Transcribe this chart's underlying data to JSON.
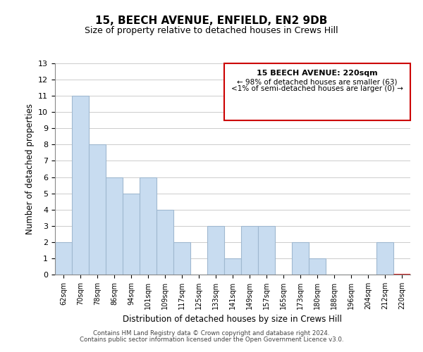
{
  "title": "15, BEECH AVENUE, ENFIELD, EN2 9DB",
  "subtitle": "Size of property relative to detached houses in Crews Hill",
  "xlabel": "Distribution of detached houses by size in Crews Hill",
  "ylabel": "Number of detached properties",
  "categories": [
    "62sqm",
    "70sqm",
    "78sqm",
    "86sqm",
    "94sqm",
    "101sqm",
    "109sqm",
    "117sqm",
    "125sqm",
    "133sqm",
    "141sqm",
    "149sqm",
    "157sqm",
    "165sqm",
    "173sqm",
    "180sqm",
    "188sqm",
    "196sqm",
    "204sqm",
    "212sqm",
    "220sqm"
  ],
  "values": [
    2,
    11,
    8,
    6,
    5,
    6,
    4,
    2,
    0,
    3,
    1,
    3,
    3,
    0,
    2,
    1,
    0,
    0,
    0,
    2,
    0
  ],
  "bar_color": "#c8dcf0",
  "bar_edge_color": "#a0b8d0",
  "highlight_bar_index": 20,
  "highlight_bar_edge_color": "#cc0000",
  "ylim": [
    0,
    13
  ],
  "yticks": [
    0,
    1,
    2,
    3,
    4,
    5,
    6,
    7,
    8,
    9,
    10,
    11,
    12,
    13
  ],
  "grid_color": "#cccccc",
  "annotation_title": "15 BEECH AVENUE: 220sqm",
  "annotation_line1": "← 98% of detached houses are smaller (63)",
  "annotation_line2": "<1% of semi-detached houses are larger (0) →",
  "annotation_box_edge": "#cc0000",
  "footer_line1": "Contains HM Land Registry data © Crown copyright and database right 2024.",
  "footer_line2": "Contains public sector information licensed under the Open Government Licence v3.0."
}
